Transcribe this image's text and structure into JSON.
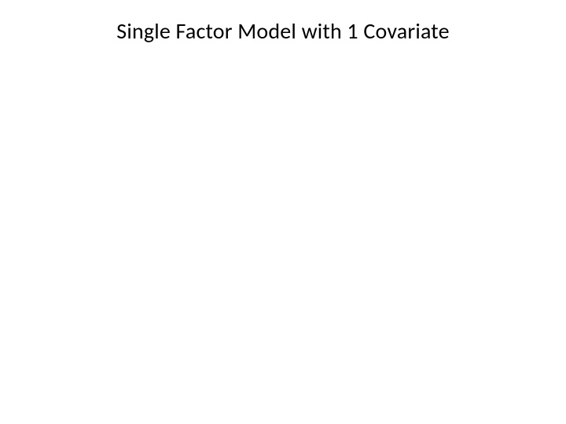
{
  "slide": {
    "title": "Single Factor Model with 1 Covariate",
    "background_color": "#ffffff",
    "title_color": "#000000",
    "title_fontsize": 28,
    "title_fontweight": 400,
    "title_font_family": "Calibri"
  }
}
